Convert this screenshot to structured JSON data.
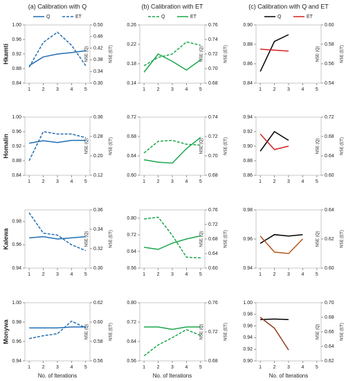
{
  "chart_data": [
    {
      "type": "line",
      "title": "(a) Calibration with Q",
      "row_label": "Hkamti",
      "legend": true,
      "ylabel": "NSE (Q)",
      "y2label": "NSE (ET)",
      "x": [
        1,
        2,
        3,
        4,
        5
      ],
      "xlim": [
        0.7,
        5.3
      ],
      "xticks": [
        1,
        2,
        3,
        4,
        5
      ],
      "ylim": [
        0.84,
        1.0
      ],
      "yticks": [
        0.84,
        0.88,
        0.92,
        0.96,
        {
          "value": 1.0,
          "label": "1.00"
        }
      ],
      "y2lim": [
        0.3,
        0.5
      ],
      "y2ticks": [
        {
          "value": 0.3,
          "label": "0.30"
        },
        0.34,
        0.38,
        0.42,
        0.46,
        {
          "value": 0.5,
          "label": "0.50"
        }
      ],
      "series": [
        {
          "name": "Q",
          "color": "#1f6db3",
          "dashed": false,
          "values": [
            0.888,
            0.912,
            0.92,
            0.924,
            0.929
          ]
        },
        {
          "name": "ET",
          "color": "#1f6db3",
          "dashed": true,
          "axis": "y2",
          "values": [
            0.355,
            0.44,
            0.475,
            0.43,
            0.36
          ]
        }
      ]
    },
    {
      "type": "line",
      "title": "(b) Calibration with ET",
      "legend": true,
      "ylabel": "NSE (Q)",
      "y2label": "NSE (ET)",
      "x": [
        1,
        2,
        3,
        4,
        5
      ],
      "xlim": [
        0.7,
        5.3
      ],
      "xticks": [
        1,
        2,
        3,
        4,
        5
      ],
      "ylim": [
        0.14,
        0.26
      ],
      "yticks": [
        0.14,
        0.18,
        0.22,
        0.26
      ],
      "y2lim": [
        0.68,
        0.76
      ],
      "y2ticks": [
        0.68,
        {
          "value": 0.7,
          "label": "0.70"
        },
        0.72,
        0.74,
        0.76
      ],
      "series": [
        {
          "name": "Q",
          "color": "#1aa64a",
          "dashed": true,
          "values": [
            0.176,
            0.193,
            0.2,
            0.225,
            0.218
          ]
        },
        {
          "name": "ET",
          "color": "#1aa64a",
          "dashed": false,
          "axis": "y2",
          "values": [
            0.695,
            0.72,
            0.71,
            0.698,
            0.712
          ]
        }
      ]
    },
    {
      "type": "line",
      "title": "(c) Calibration with Q and ET",
      "legend": true,
      "ylabel": "NSE (Q)",
      "y2label": "NSE (ET)",
      "x": [
        1,
        2,
        3,
        4,
        5
      ],
      "xlim": [
        0.7,
        5.3
      ],
      "xticks": [
        1,
        2,
        3,
        4,
        5
      ],
      "ylim": [
        0.84,
        0.9
      ],
      "yticks": [
        0.84,
        0.86,
        0.88,
        {
          "value": 0.9,
          "label": "0.90"
        }
      ],
      "y2lim": [
        0.54,
        0.6
      ],
      "y2ticks": [
        0.54,
        0.56,
        0.58,
        {
          "value": 0.6,
          "label": "0.60"
        }
      ],
      "series": [
        {
          "name": "Q",
          "color": "#000000",
          "dashed": false,
          "values": [
            0.852,
            0.883,
            0.89,
            null,
            null
          ]
        },
        {
          "name": "ET",
          "color": "#d62020",
          "dashed": false,
          "axis": "y2",
          "values": [
            0.575,
            0.574,
            0.573,
            null,
            null
          ]
        }
      ]
    },
    {
      "type": "line",
      "row_label": "Homalin",
      "ylabel": "NSE (Q)",
      "y2label": "NSE (ET)",
      "x": [
        1,
        2,
        3,
        4,
        5
      ],
      "xlim": [
        0.7,
        5.3
      ],
      "xticks": [
        1,
        2,
        3,
        4,
        5
      ],
      "ylim": [
        0.84,
        1.0
      ],
      "yticks": [
        0.84,
        0.88,
        0.92,
        0.96,
        {
          "value": 1.0,
          "label": "1.00"
        }
      ],
      "y2lim": [
        0.12,
        0.36
      ],
      "y2ticks": [
        0.12,
        {
          "value": 0.2,
          "label": "0.20"
        },
        0.28,
        0.36
      ],
      "series": [
        {
          "name": "Q",
          "color": "#1f6db3",
          "dashed": false,
          "values": [
            0.928,
            0.935,
            0.93,
            0.936,
            0.936
          ]
        },
        {
          "name": "ET",
          "color": "#1f6db3",
          "dashed": true,
          "axis": "y2",
          "values": [
            0.18,
            0.3,
            0.29,
            0.29,
            0.275
          ]
        }
      ]
    },
    {
      "type": "line",
      "ylabel": "NSE (Q)",
      "y2label": "NSE (ET)",
      "x": [
        1,
        2,
        3,
        4,
        5
      ],
      "xlim": [
        0.7,
        5.3
      ],
      "xticks": [
        1,
        2,
        3,
        4,
        5
      ],
      "ylim": [
        0.6,
        0.72
      ],
      "yticks": [
        {
          "value": 0.6,
          "label": "0.60"
        },
        0.64,
        0.68,
        0.72
      ],
      "y2lim": [
        0.68,
        0.74
      ],
      "y2ticks": [
        0.68,
        {
          "value": 0.7,
          "label": "0.70"
        },
        0.72,
        0.74
      ],
      "series": [
        {
          "name": "Q",
          "color": "#1aa64a",
          "dashed": false,
          "values": [
            0.632,
            0.627,
            0.625,
            0.655,
            0.678
          ]
        },
        {
          "name": "ET",
          "color": "#1aa64a",
          "dashed": true,
          "axis": "y2",
          "values": [
            0.703,
            0.715,
            0.716,
            0.712,
            0.711
          ]
        }
      ]
    },
    {
      "type": "line",
      "ylabel": "NSE (Q)",
      "y2label": "NSE (ET)",
      "x": [
        1,
        2,
        3,
        4,
        5
      ],
      "xlim": [
        0.7,
        5.3
      ],
      "xticks": [
        1,
        2,
        3,
        4,
        5
      ],
      "ylim": [
        0.86,
        0.94
      ],
      "yticks": [
        0.86,
        0.88,
        {
          "value": 0.9,
          "label": "0.90"
        },
        0.92,
        0.94
      ],
      "y2lim": [
        0.6,
        0.72
      ],
      "y2ticks": [
        {
          "value": 0.6,
          "label": "0.60"
        },
        0.64,
        0.68,
        0.72
      ],
      "series": [
        {
          "name": "Q",
          "color": "#000000",
          "dashed": false,
          "values": [
            0.893,
            0.92,
            0.908,
            null,
            null
          ]
        },
        {
          "name": "ET",
          "color": "#d62020",
          "dashed": false,
          "axis": "y2",
          "values": [
            0.685,
            0.653,
            0.66,
            null,
            null
          ]
        }
      ]
    },
    {
      "type": "line",
      "row_label": "Kalewa",
      "ylabel": "NSE (Q)",
      "y2label": "NSE (ET)",
      "x": [
        1,
        2,
        3,
        4,
        5
      ],
      "xlim": [
        0.7,
        5.3
      ],
      "xticks": [
        1,
        2,
        3,
        4,
        5
      ],
      "ylim": [
        0.94,
        0.99
      ],
      "yticks": [
        0.94,
        0.96,
        0.98
      ],
      "y2lim": [
        0.3,
        0.36
      ],
      "y2ticks": [
        {
          "value": 0.3,
          "label": "0.30"
        },
        0.32,
        0.34,
        0.36
      ],
      "series": [
        {
          "name": "Q",
          "color": "#1f6db3",
          "dashed": false,
          "values": [
            0.966,
            0.967,
            0.965,
            0.966,
            0.967
          ]
        },
        {
          "name": "ET",
          "color": "#1f6db3",
          "dashed": true,
          "axis": "y2",
          "values": [
            0.357,
            0.336,
            0.334,
            0.324,
            0.318
          ]
        }
      ]
    },
    {
      "type": "line",
      "ylabel": "NSE (Q)",
      "y2label": "NSE (ET)",
      "x": [
        1,
        2,
        3,
        4,
        5
      ],
      "xlim": [
        0.7,
        5.3
      ],
      "xticks": [
        1,
        2,
        3,
        4,
        5
      ],
      "ylim": [
        0.56,
        0.84
      ],
      "yticks": [
        0.56,
        0.64,
        0.72,
        {
          "value": 0.8,
          "label": "0.80"
        }
      ],
      "y2lim": [
        0.6,
        0.76
      ],
      "y2ticks": [
        {
          "value": 0.6,
          "label": "0.60"
        },
        0.64,
        0.68,
        0.72,
        0.76
      ],
      "series": [
        {
          "name": "Q",
          "color": "#1aa64a",
          "dashed": false,
          "values": [
            0.66,
            0.65,
            0.68,
            0.7,
            0.715
          ]
        },
        {
          "name": "ET",
          "color": "#1aa64a",
          "dashed": true,
          "axis": "y2",
          "values": [
            0.735,
            0.74,
            0.69,
            0.63,
            0.628
          ]
        }
      ]
    },
    {
      "type": "line",
      "ylabel": "NSE (Q)",
      "y2label": "NSE (ET)",
      "x": [
        1,
        2,
        3,
        4,
        5
      ],
      "xlim": [
        0.7,
        5.3
      ],
      "xticks": [
        1,
        2,
        3,
        4,
        5
      ],
      "ylim": [
        0.94,
        0.98
      ],
      "yticks": [
        0.94,
        0.96,
        0.98
      ],
      "y2lim": [
        0.6,
        0.64
      ],
      "y2ticks": [
        {
          "value": 0.6,
          "label": "0.60"
        },
        0.62,
        0.64
      ],
      "series": [
        {
          "name": "Q",
          "color": "#000000",
          "dashed": false,
          "values": [
            0.957,
            0.963,
            0.962,
            0.963,
            null
          ]
        },
        {
          "name": "ET",
          "color": "#b4561c",
          "dashed": false,
          "axis": "y2",
          "values": [
            0.622,
            0.611,
            0.61,
            0.62,
            null
          ]
        }
      ]
    },
    {
      "type": "line",
      "row_label": "Monywa",
      "xlabel": "No. of Iterations",
      "ylabel": "NSE (Q)",
      "y2label": "NSE (ET)",
      "x": [
        1,
        2,
        3,
        4,
        5
      ],
      "xlim": [
        0.7,
        5.3
      ],
      "xticks": [
        1,
        2,
        3,
        4,
        5
      ],
      "ylim": [
        0.94,
        1.0
      ],
      "yticks": [
        0.94,
        0.96,
        0.98,
        {
          "value": 1.0,
          "label": "1.00"
        }
      ],
      "y2lim": [
        0.56,
        0.62
      ],
      "y2ticks": [
        0.56,
        0.58,
        {
          "value": 0.6,
          "label": "0.60"
        },
        0.62
      ],
      "series": [
        {
          "name": "Q",
          "color": "#1f6db3",
          "dashed": false,
          "values": [
            0.974,
            0.974,
            0.974,
            0.975,
            0.975
          ]
        },
        {
          "name": "ET",
          "color": "#1f6db3",
          "dashed": true,
          "axis": "y2",
          "values": [
            0.583,
            0.586,
            0.588,
            0.601,
            0.594
          ]
        }
      ]
    },
    {
      "type": "line",
      "xlabel": "No. of Iterations",
      "ylabel": "NSE (Q)",
      "y2label": "NSE (ET)",
      "x": [
        1,
        2,
        3,
        4,
        5
      ],
      "xlim": [
        0.7,
        5.3
      ],
      "xticks": [
        1,
        2,
        3,
        4,
        5
      ],
      "ylim": [
        0.56,
        0.8
      ],
      "yticks": [
        0.56,
        0.64,
        0.72,
        {
          "value": 0.8,
          "label": "0.80"
        }
      ],
      "y2lim": [
        0.68,
        0.76
      ],
      "y2ticks": [
        0.68,
        0.72,
        0.76
      ],
      "series": [
        {
          "name": "Q",
          "color": "#1aa64a",
          "dashed": false,
          "values": [
            0.7,
            0.7,
            0.69,
            0.7,
            0.7
          ]
        },
        {
          "name": "ET",
          "color": "#1aa64a",
          "dashed": true,
          "axis": "y2",
          "values": [
            0.687,
            0.702,
            0.712,
            0.723,
            0.715
          ]
        }
      ]
    },
    {
      "type": "line",
      "xlabel": "No. of Iterations",
      "ylabel": "NSE (Q)",
      "y2label": "NSE (ET)",
      "x": [
        1,
        2,
        3,
        4,
        5
      ],
      "xlim": [
        0.7,
        5.3
      ],
      "xticks": [
        1,
        2,
        3,
        4,
        5
      ],
      "ylim": [
        0.9,
        1.0
      ],
      "yticks": [
        {
          "value": 0.9,
          "label": "0.90"
        },
        0.92,
        0.94,
        0.96,
        0.98,
        {
          "value": 1.0,
          "label": "1.00"
        }
      ],
      "y2lim": [
        0.62,
        0.7
      ],
      "y2ticks": [
        0.62,
        0.64,
        0.66,
        0.68,
        {
          "value": 0.7,
          "label": "0.70"
        }
      ],
      "series": [
        {
          "name": "Q",
          "color": "#000000",
          "dashed": false,
          "values": [
            0.971,
            0.972,
            0.971,
            null,
            null
          ]
        },
        {
          "name": "ET",
          "color": "#8e3a1a",
          "dashed": false,
          "axis": "y2",
          "values": [
            0.68,
            0.665,
            0.635,
            null,
            null
          ]
        }
      ]
    }
  ]
}
